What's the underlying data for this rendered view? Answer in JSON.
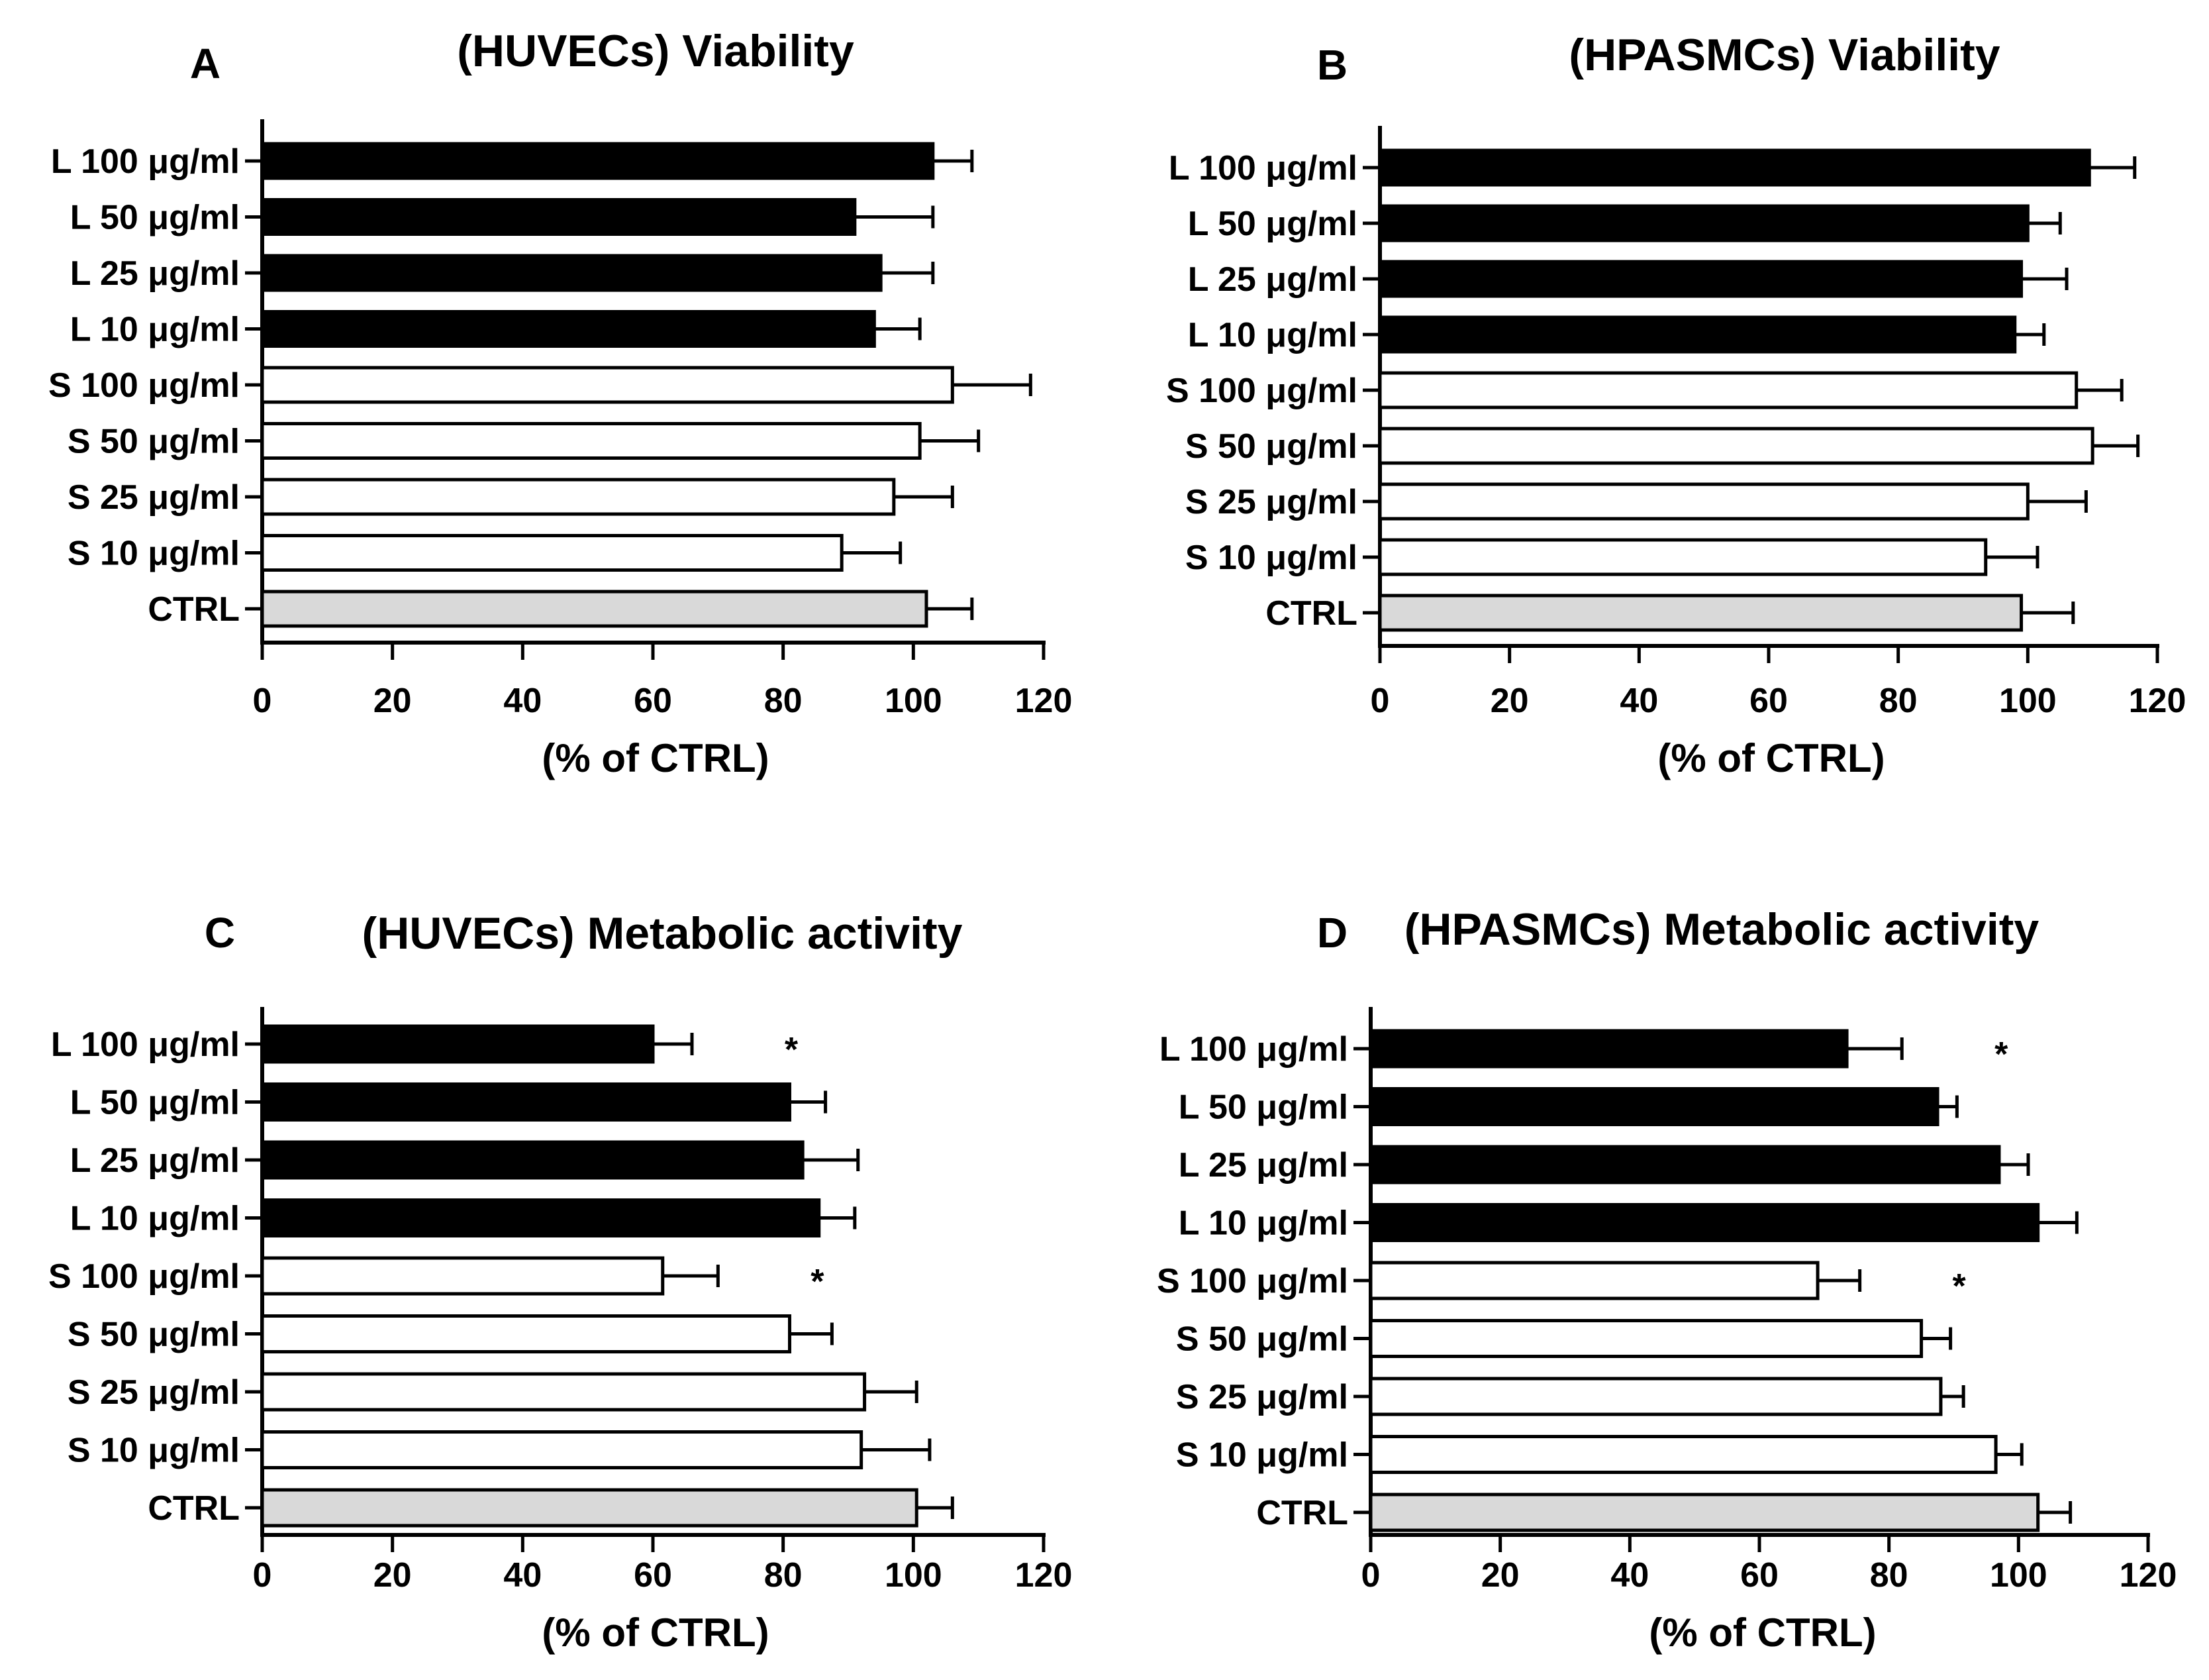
{
  "colors": {
    "L": "#000000",
    "S": "#ffffff",
    "CTRL": "#d9d9d9",
    "stroke": "#000000"
  },
  "chart_data": [
    {
      "type": "bar",
      "orientation": "horizontal",
      "letter": "A",
      "title": "(HUVECs) Viability",
      "xlabel": "(% of CTRL)",
      "ylabel": "",
      "xlim": [
        0,
        120
      ],
      "ticks": [
        "0",
        "20",
        "40",
        "60",
        "80",
        "100",
        "120"
      ],
      "categories": [
        "L 100 μg/ml",
        "L 50 μg/ml",
        "L 25 μg/ml",
        "L 10 μg/ml",
        "S 100 μg/ml",
        "S 50 μg/ml",
        "S 25 μg/ml",
        "S 10 μg/ml",
        "CTRL"
      ],
      "groups": [
        "L",
        "L",
        "L",
        "L",
        "S",
        "S",
        "S",
        "S",
        "CTRL"
      ],
      "values": [
        103,
        91,
        95,
        94,
        106,
        101,
        97,
        89,
        102
      ],
      "errors": [
        6,
        12,
        8,
        7,
        12,
        9,
        9,
        9,
        7
      ],
      "significance": [
        "",
        "",
        "",
        "",
        "",
        "",
        "",
        "",
        ""
      ]
    },
    {
      "type": "bar",
      "orientation": "horizontal",
      "letter": "B",
      "title": "(HPASMCs) Viability",
      "xlabel": "(% of CTRL)",
      "ylabel": "",
      "xlim": [
        0,
        120
      ],
      "ticks": [
        "0",
        "20",
        "40",
        "60",
        "80",
        "100",
        "120"
      ],
      "categories": [
        "L 100 μg/ml",
        "L 50 μg/ml",
        "L 25 μg/ml",
        "L 10 μg/ml",
        "S 100 μg/ml",
        "S 50 μg/ml",
        "S 25 μg/ml",
        "S 10 μg/ml",
        "CTRL"
      ],
      "groups": [
        "L",
        "L",
        "L",
        "L",
        "S",
        "S",
        "S",
        "S",
        "CTRL"
      ],
      "values": [
        109.5,
        100,
        99,
        98,
        107.5,
        110,
        100,
        93.5,
        99
      ],
      "errors": [
        7,
        5,
        7,
        4.5,
        7,
        7,
        9,
        8,
        8
      ],
      "significance": [
        "",
        "",
        "",
        "",
        "",
        "",
        "",
        "",
        ""
      ]
    },
    {
      "type": "bar",
      "orientation": "horizontal",
      "letter": "C",
      "title": "(HUVECs) Metabolic activity",
      "xlabel": "(% of CTRL)",
      "ylabel": "",
      "xlim": [
        0,
        120
      ],
      "ticks": [
        "0",
        "20",
        "40",
        "60",
        "80",
        "100",
        "120"
      ],
      "categories": [
        "L 100 μg/ml",
        "L 50 μg/ml",
        "L 25 μg/ml",
        "L 10 μg/ml",
        "S 100 μg/ml",
        "S 50 μg/ml",
        "S 25 μg/ml",
        "S 10 μg/ml",
        "CTRL"
      ],
      "groups": [
        "L",
        "L",
        "L",
        "L",
        "S",
        "S",
        "S",
        "S",
        "CTRL"
      ],
      "values": [
        60,
        81,
        83,
        85.5,
        61.5,
        81,
        92.5,
        92,
        100.5
      ],
      "errors": [
        6,
        5.5,
        8.5,
        5.5,
        8.5,
        6.5,
        8,
        10.5,
        5.5
      ],
      "significance": [
        "*",
        "",
        "",
        "",
        "*",
        "",
        "",
        "",
        ""
      ]
    },
    {
      "type": "bar",
      "orientation": "horizontal",
      "letter": "D",
      "title": "(HPASMCs) Metabolic activity",
      "xlabel": "(% of CTRL)",
      "ylabel": "",
      "xlim": [
        0,
        120
      ],
      "ticks": [
        "0",
        "20",
        "40",
        "60",
        "80",
        "100",
        "120"
      ],
      "categories": [
        "L 100 μg/ml",
        "L 50 μg/ml",
        "L 25 μg/ml",
        "L 10 μg/ml",
        "S 100 μg/ml",
        "S 50 μg/ml",
        "S 25 μg/ml",
        "S 10 μg/ml",
        "CTRL"
      ],
      "groups": [
        "L",
        "L",
        "L",
        "L",
        "S",
        "S",
        "S",
        "S",
        "CTRL"
      ],
      "values": [
        73.5,
        87.5,
        97,
        103,
        69,
        85,
        88,
        96.5,
        103
      ],
      "errors": [
        8.5,
        3,
        4.5,
        6,
        6.5,
        4.5,
        3.5,
        4,
        5
      ],
      "significance": [
        "*",
        "",
        "",
        "",
        "*",
        "",
        "",
        "",
        ""
      ]
    }
  ]
}
